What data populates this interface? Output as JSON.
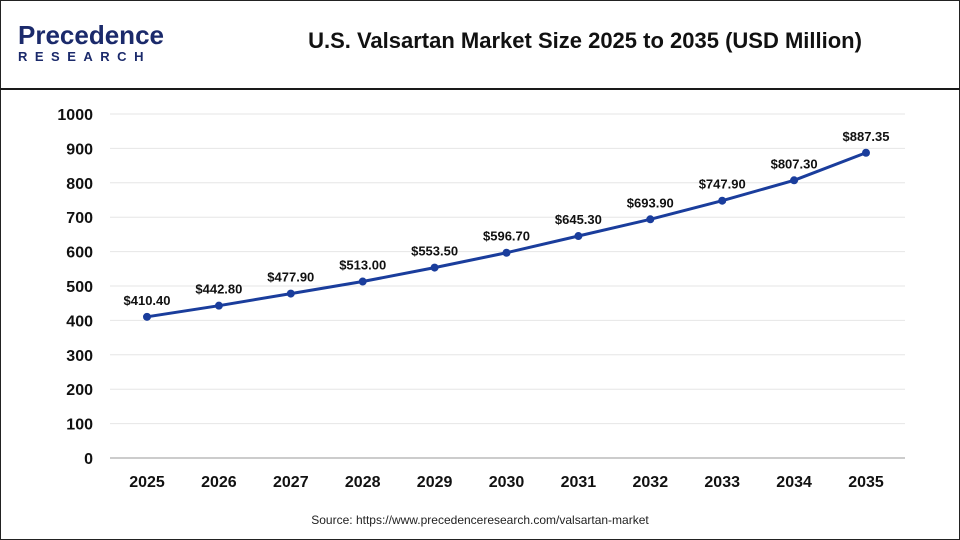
{
  "logo": {
    "line1": "Precedence",
    "line2": "RESEARCH"
  },
  "title": "U.S. Valsartan Market Size 2025 to 2035 (USD Million)",
  "source": "Source: https://www.precedenceresearch.com/valsartan-market",
  "colors": {
    "line": "#1a3d9c",
    "grid": "#e6e6e6"
  },
  "chart_data": {
    "type": "line",
    "title": "U.S. Valsartan Market Size 2025 to 2035 (USD Million)",
    "categories": [
      "2025",
      "2026",
      "2027",
      "2028",
      "2029",
      "2030",
      "2031",
      "2032",
      "2033",
      "2034",
      "2035"
    ],
    "values": [
      410.4,
      442.8,
      477.9,
      513.0,
      553.5,
      596.7,
      645.3,
      693.9,
      747.9,
      807.3,
      887.35
    ],
    "labels": [
      "$410.40",
      "$442.80",
      "$477.90",
      "$513.00",
      "$553.50",
      "$596.70",
      "$645.30",
      "$693.90",
      "$747.90",
      "$807.30",
      "$887.35"
    ],
    "yticks": [
      0,
      100,
      200,
      300,
      400,
      500,
      600,
      700,
      800,
      900,
      1000
    ],
    "ylim": [
      0,
      1000
    ],
    "grid": true,
    "legend": "none"
  }
}
